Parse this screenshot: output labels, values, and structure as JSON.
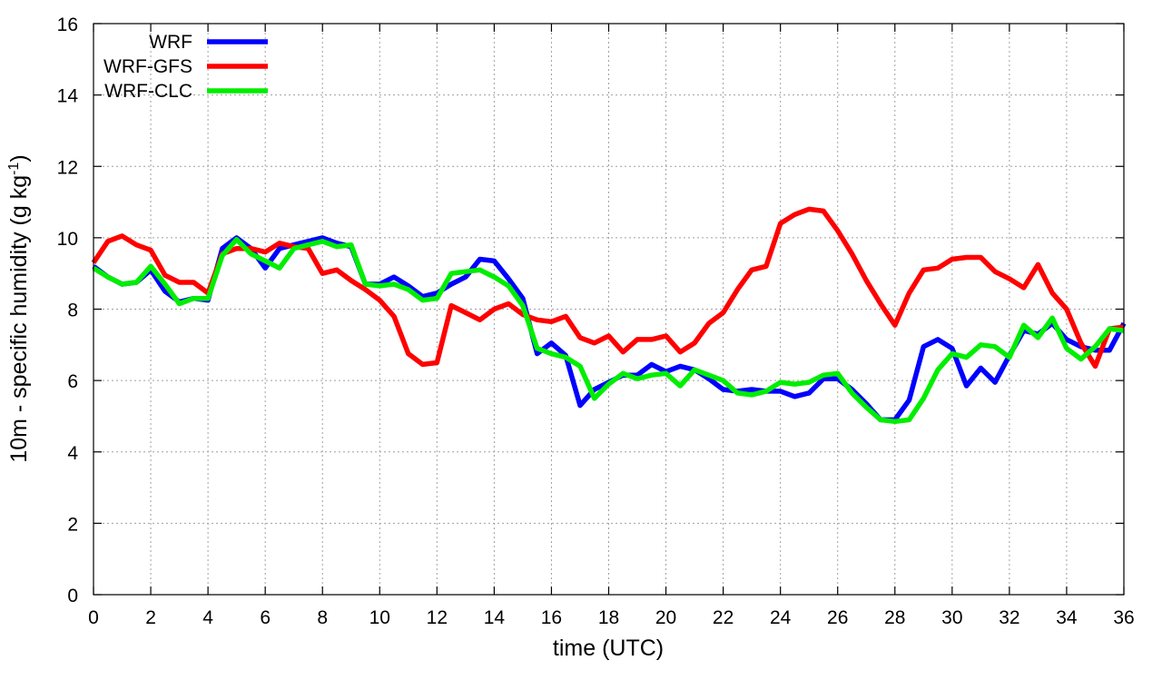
{
  "chart_data": {
    "type": "line",
    "xlabel": "time (UTC)",
    "ylabel_main": "10m - specific humidity (g kg",
    "ylabel_sup": "-1",
    "ylabel_close": ")",
    "xlim": [
      0,
      36
    ],
    "ylim": [
      0,
      16
    ],
    "xticks": [
      "0",
      "2",
      "4",
      "6",
      "8",
      "10",
      "12",
      "14",
      "16",
      "18",
      "20",
      "22",
      "24",
      "26",
      "28",
      "30",
      "32",
      "34",
      "36"
    ],
    "yticks": [
      "0",
      "2",
      "4",
      "6",
      "8",
      "10",
      "12",
      "14",
      "16"
    ],
    "grid": true,
    "legend_position": "top-left",
    "x": [
      0,
      0.5,
      1,
      1.5,
      2,
      2.5,
      3,
      3.5,
      4,
      4.5,
      5,
      5.5,
      6,
      6.5,
      7,
      7.5,
      8,
      8.5,
      9,
      9.5,
      10,
      10.5,
      11,
      11.5,
      12,
      12.5,
      13,
      13.5,
      14,
      14.5,
      15,
      15.5,
      16,
      16.5,
      17,
      17.5,
      18,
      18.5,
      19,
      19.5,
      20,
      20.5,
      21,
      21.5,
      22,
      22.5,
      23,
      23.5,
      24,
      24.5,
      25,
      25.5,
      26,
      26.5,
      27,
      27.5,
      28,
      28.5,
      29,
      29.5,
      30,
      30.5,
      31,
      31.5,
      32,
      32.5,
      33,
      33.5,
      34,
      34.5,
      35,
      35.5,
      36
    ],
    "series": [
      {
        "name": "WRF",
        "color": "#0000ff",
        "values": [
          9.2,
          8.9,
          8.7,
          8.75,
          9.1,
          8.5,
          8.2,
          8.3,
          8.25,
          9.7,
          10.0,
          9.7,
          9.15,
          9.7,
          9.8,
          9.9,
          10.0,
          9.85,
          9.75,
          8.7,
          8.7,
          8.9,
          8.65,
          8.35,
          8.45,
          8.7,
          8.9,
          9.4,
          9.35,
          8.85,
          8.3,
          6.75,
          7.05,
          6.7,
          5.3,
          5.75,
          5.95,
          6.15,
          6.15,
          6.45,
          6.25,
          6.4,
          6.3,
          6.05,
          5.75,
          5.7,
          5.75,
          5.7,
          5.7,
          5.55,
          5.65,
          6.05,
          6.05,
          5.75,
          5.35,
          4.9,
          4.9,
          5.45,
          6.95,
          7.15,
          6.9,
          5.85,
          6.35,
          5.95,
          6.7,
          7.4,
          7.3,
          7.6,
          7.15,
          6.95,
          6.85,
          6.85,
          7.6
        ]
      },
      {
        "name": "WRF-GFS",
        "color": "#ff0000",
        "values": [
          9.3,
          9.9,
          10.05,
          9.8,
          9.65,
          8.95,
          8.75,
          8.75,
          8.45,
          9.55,
          9.7,
          9.7,
          9.6,
          9.85,
          9.75,
          9.7,
          9.0,
          9.1,
          8.8,
          8.55,
          8.25,
          7.8,
          6.75,
          6.45,
          6.5,
          8.1,
          7.9,
          7.7,
          8.0,
          8.15,
          7.85,
          7.7,
          7.65,
          7.8,
          7.2,
          7.05,
          7.25,
          6.8,
          7.15,
          7.15,
          7.25,
          6.8,
          7.05,
          7.6,
          7.9,
          8.55,
          9.1,
          9.2,
          10.4,
          10.65,
          10.8,
          10.75,
          10.2,
          9.55,
          8.8,
          8.15,
          7.55,
          8.45,
          9.1,
          9.15,
          9.4,
          9.45,
          9.45,
          9.05,
          8.85,
          8.6,
          9.25,
          8.45,
          8.0,
          7.05,
          6.4,
          7.45,
          7.5
        ]
      },
      {
        "name": "WRF-CLC",
        "color": "#00ee00",
        "values": [
          9.15,
          8.9,
          8.7,
          8.75,
          9.2,
          8.7,
          8.15,
          8.3,
          8.3,
          9.5,
          9.95,
          9.55,
          9.35,
          9.15,
          9.7,
          9.8,
          9.9,
          9.75,
          9.8,
          8.7,
          8.65,
          8.7,
          8.55,
          8.25,
          8.3,
          9.0,
          9.05,
          9.1,
          8.9,
          8.65,
          8.1,
          6.9,
          6.75,
          6.65,
          6.4,
          5.5,
          5.9,
          6.2,
          6.05,
          6.15,
          6.2,
          5.85,
          6.3,
          6.15,
          6.0,
          5.65,
          5.6,
          5.7,
          5.95,
          5.9,
          5.95,
          6.15,
          6.2,
          5.65,
          5.25,
          4.9,
          4.85,
          4.9,
          5.5,
          6.3,
          6.75,
          6.65,
          7.0,
          6.95,
          6.65,
          7.55,
          7.2,
          7.75,
          6.9,
          6.6,
          6.95,
          7.45,
          7.4
        ]
      }
    ]
  }
}
